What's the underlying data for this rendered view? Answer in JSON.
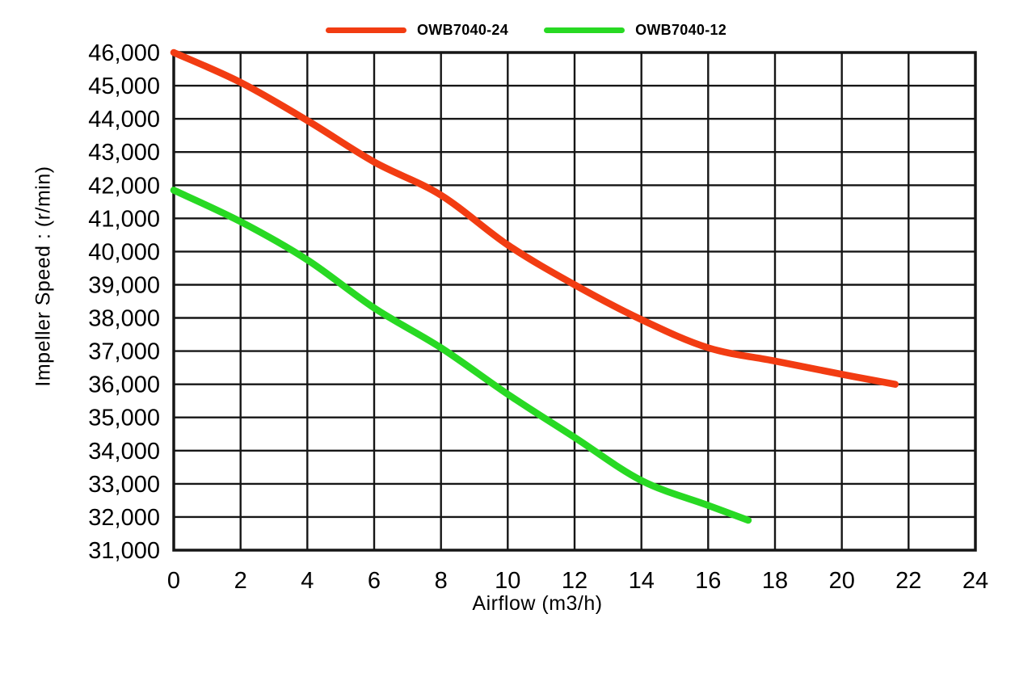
{
  "chart_data": {
    "type": "line",
    "title": "",
    "xlabel": "Airflow (m3/h)",
    "ylabel": "Impeller Speed : (r/min)",
    "xlim": [
      0,
      24
    ],
    "ylim": [
      31000,
      46000
    ],
    "xticks": [
      0,
      2,
      4,
      6,
      8,
      10,
      12,
      14,
      16,
      18,
      20,
      22,
      24
    ],
    "yticks": [
      31000,
      32000,
      33000,
      34000,
      35000,
      36000,
      37000,
      38000,
      39000,
      40000,
      41000,
      42000,
      43000,
      44000,
      45000,
      46000
    ],
    "grid": true,
    "legend_position": "top",
    "series": [
      {
        "name": "OWB7040-24",
        "color": "#f23c12",
        "points": [
          [
            0,
            46000
          ],
          [
            2,
            45100
          ],
          [
            4,
            43950
          ],
          [
            6,
            42700
          ],
          [
            8,
            41700
          ],
          [
            10,
            40200
          ],
          [
            12,
            39000
          ],
          [
            14,
            37950
          ],
          [
            16,
            37100
          ],
          [
            18,
            36700
          ],
          [
            20,
            36300
          ],
          [
            21.6,
            36000
          ]
        ]
      },
      {
        "name": "OWB7040-12",
        "color": "#28d923",
        "points": [
          [
            0,
            41850
          ],
          [
            2,
            40900
          ],
          [
            4,
            39750
          ],
          [
            6,
            38300
          ],
          [
            8,
            37100
          ],
          [
            10,
            35700
          ],
          [
            12,
            34400
          ],
          [
            14,
            33100
          ],
          [
            16,
            32350
          ],
          [
            17.2,
            31900
          ]
        ]
      }
    ]
  },
  "legend": {
    "items": [
      {
        "label": "OWB7040-24",
        "color": "#f23c12"
      },
      {
        "label": "OWB7040-12",
        "color": "#28d923"
      }
    ]
  },
  "colors": {
    "background": "#ffffff",
    "grid": "#161616",
    "text": "#000000"
  }
}
